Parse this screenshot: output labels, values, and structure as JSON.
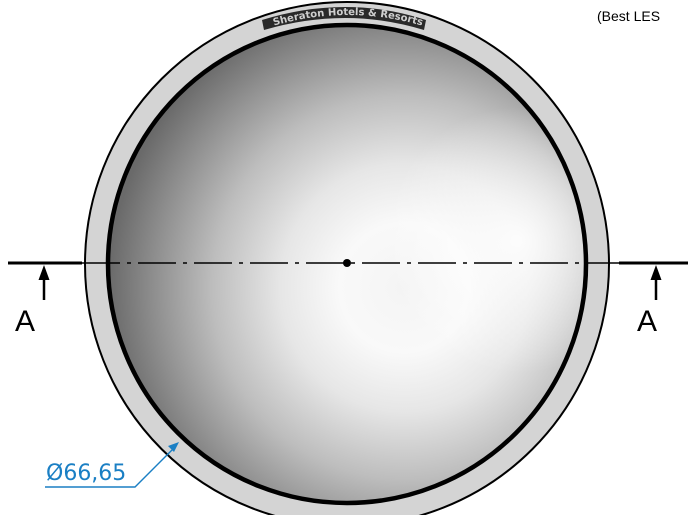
{
  "header": {
    "note": "(Best LES"
  },
  "section": {
    "left_label": "A",
    "right_label": "A"
  },
  "dimension": {
    "diameter_label": "Ø66,65"
  },
  "engraving": {
    "text": "Sheraton Hotels & Resorts"
  },
  "colors": {
    "line": "#000000",
    "rim": "#d4d4d4",
    "dimension": "#1a7fc4",
    "bowl_light": "#f7f7f7",
    "bowl_dark": "#6c6c6c"
  }
}
